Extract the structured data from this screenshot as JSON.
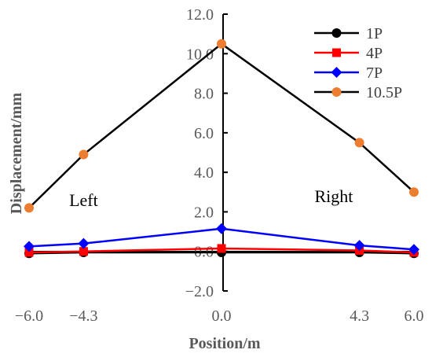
{
  "chart_data": {
    "type": "line",
    "title": "",
    "xlabel": "Position/m",
    "ylabel": "Displacement/mm",
    "x": [
      -6.0,
      -4.3,
      0.0,
      4.3,
      6.0
    ],
    "x_tick_labels": [
      "−6.0",
      "−4.3",
      "0.0",
      "4.3",
      "6.0"
    ],
    "xlim": [
      -6.0,
      6.0
    ],
    "ylim": [
      -2.0,
      12.0
    ],
    "y_tick_values": [
      -2.0,
      0.0,
      2.0,
      4.0,
      6.0,
      8.0,
      10.0,
      12.0
    ],
    "y_tick_labels": [
      "−2.0",
      "0.0",
      "2.0",
      "4.0",
      "6.0",
      "8.0",
      "10.0",
      "12.0"
    ],
    "grid": false,
    "legend_position": "top-right",
    "series": [
      {
        "name": "1P",
        "values": [
          -0.1,
          -0.05,
          -0.05,
          -0.05,
          -0.1
        ],
        "line_color": "#000000",
        "marker_color": "#000000",
        "marker": "circle"
      },
      {
        "name": "4P",
        "values": [
          -0.05,
          0.0,
          0.15,
          0.05,
          -0.05
        ],
        "line_color": "#ff0000",
        "marker_color": "#ff0000",
        "marker": "square"
      },
      {
        "name": "7P",
        "values": [
          0.25,
          0.4,
          1.15,
          0.3,
          0.1
        ],
        "line_color": "#0000ff",
        "marker_color": "#0000ff",
        "marker": "diamond"
      },
      {
        "name": "10.5P",
        "values": [
          2.2,
          4.9,
          10.5,
          5.5,
          3.0
        ],
        "line_color": "#000000",
        "marker_color": "#ed7d31",
        "marker": "circle"
      }
    ],
    "annotations": [
      {
        "text": "Left",
        "x": -4.3,
        "y": 2.3
      },
      {
        "text": "Right",
        "x": 3.5,
        "y": 2.5
      }
    ]
  }
}
